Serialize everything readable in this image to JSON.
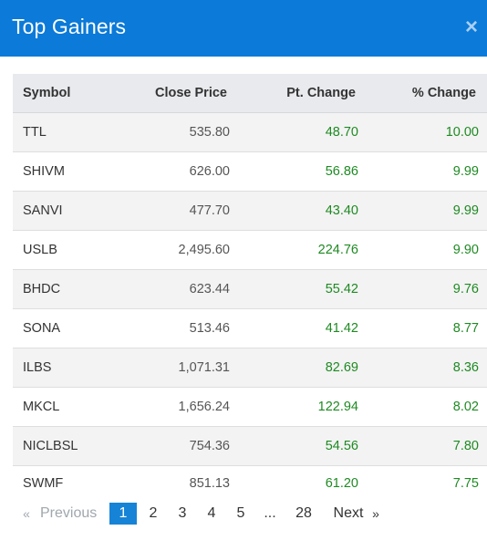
{
  "header": {
    "title": "Top Gainers",
    "close_icon": "×"
  },
  "table": {
    "columns": [
      "Symbol",
      "Close Price",
      "Pt. Change",
      "% Change"
    ],
    "rows": [
      {
        "symbol": "TTL",
        "close": "535.80",
        "pt": "48.70",
        "pct": "10.00"
      },
      {
        "symbol": "SHIVM",
        "close": "626.00",
        "pt": "56.86",
        "pct": "9.99"
      },
      {
        "symbol": "SANVI",
        "close": "477.70",
        "pt": "43.40",
        "pct": "9.99"
      },
      {
        "symbol": "USLB",
        "close": "2,495.60",
        "pt": "224.76",
        "pct": "9.90"
      },
      {
        "symbol": "BHDC",
        "close": "623.44",
        "pt": "55.42",
        "pct": "9.76"
      },
      {
        "symbol": "SONA",
        "close": "513.46",
        "pt": "41.42",
        "pct": "8.77"
      },
      {
        "symbol": "ILBS",
        "close": "1,071.31",
        "pt": "82.69",
        "pct": "8.36"
      },
      {
        "symbol": "MKCL",
        "close": "1,656.24",
        "pt": "122.94",
        "pct": "8.02"
      },
      {
        "symbol": "NICLBSL",
        "close": "754.36",
        "pt": "54.56",
        "pct": "7.80"
      },
      {
        "symbol": "SWMF",
        "close": "851.13",
        "pt": "61.20",
        "pct": "7.75"
      }
    ]
  },
  "pagination": {
    "prev_arrow": "«",
    "prev_label": "Previous",
    "pages": [
      "1",
      "2",
      "3",
      "4",
      "5"
    ],
    "ellipsis": "...",
    "last_page": "28",
    "next_label": "Next",
    "next_arrow": "»",
    "current": "1"
  },
  "colors": {
    "header_bg": "#0b7ad8",
    "positive": "#1e8a22",
    "active_page": "#1683d6"
  }
}
